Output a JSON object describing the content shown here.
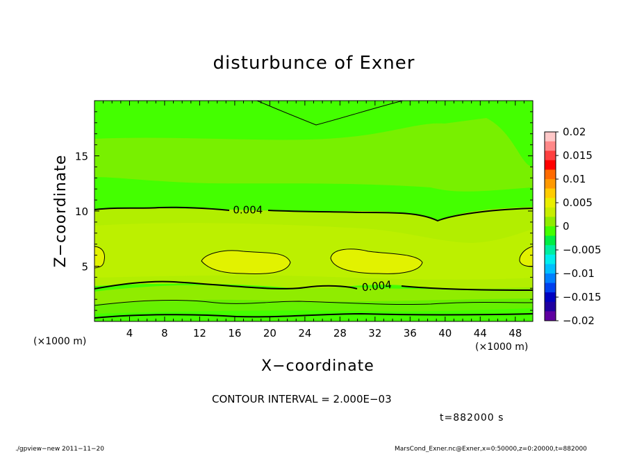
{
  "chart_data": {
    "type": "heatmap",
    "title": "disturbunce of Exner",
    "xlabel": "X−coordinate",
    "ylabel": "Z−coordinate",
    "x_unit": "(×1000 m)",
    "xlim": [
      0,
      50
    ],
    "ylim": [
      0,
      20
    ],
    "x_ticks": [
      4,
      8,
      12,
      16,
      20,
      24,
      28,
      32,
      36,
      40,
      44,
      48
    ],
    "y_ticks": [
      5,
      10,
      15
    ],
    "contour_interval": "CONTOUR INTERVAL = 2.000E−03",
    "contour_labels": [
      {
        "text": "0.004",
        "x": 17.5,
        "z": 10.1
      },
      {
        "text": "0.004",
        "x": 32.2,
        "z": 3.2
      }
    ],
    "colorbar": {
      "ticks": [
        "0.02",
        "0.015",
        "0.01",
        "0.005",
        "0",
        "−0.005",
        "−0.01",
        "−0.015",
        "−0.02"
      ],
      "colors": [
        "#ffc8c8",
        "#ff8888",
        "#ff4040",
        "#ff0000",
        "#ff6a00",
        "#ff9900",
        "#ffcc00",
        "#eaee00",
        "#c8ee00",
        "#90ec00",
        "#44ff00",
        "#00ee44",
        "#00eea0",
        "#00eeee",
        "#00c0ff",
        "#0080ff",
        "#0040ee",
        "#0000c0",
        "#2000a0",
        "#6000a0"
      ]
    },
    "time_label": "t=882000 s"
  },
  "footer": {
    "left": "./gpview−new   2011−11−20",
    "right": "MarsCond_Exner.nc@Exner,x=0:50000,z=0:20000,t=882000"
  }
}
